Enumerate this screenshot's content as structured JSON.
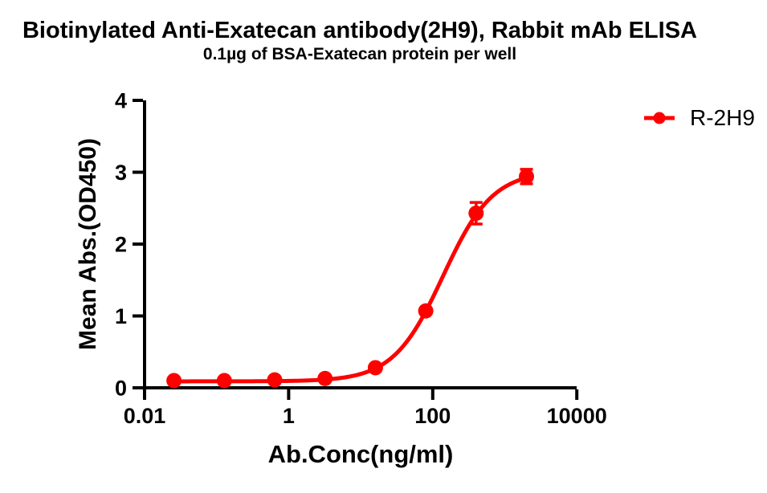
{
  "chart_data": {
    "type": "line",
    "title": "Biotinylated Anti-Exatecan antibody(2H9), Rabbit mAb ELISA",
    "subtitle": "0.1µg of BSA-Exatecan protein per well",
    "xlabel": "Ab.Conc(ng/ml)",
    "ylabel": "Mean Abs.(OD450)",
    "x_scale": "log10",
    "xlim": [
      0.01,
      10000
    ],
    "ylim": [
      0,
      4
    ],
    "grid": false,
    "legend_position": "top-right",
    "x_ticks": [
      {
        "value": 0.01,
        "label": "0.01"
      },
      {
        "value": 1,
        "label": "1"
      },
      {
        "value": 100,
        "label": "100"
      },
      {
        "value": 10000,
        "label": "10000"
      }
    ],
    "y_ticks": [
      {
        "value": 0,
        "label": "0"
      },
      {
        "value": 1,
        "label": "1"
      },
      {
        "value": 2,
        "label": "2"
      },
      {
        "value": 3,
        "label": "3"
      },
      {
        "value": 4,
        "label": "4"
      }
    ],
    "series": [
      {
        "name": "R-2H9",
        "color": "#ff0000",
        "marker": "circle",
        "points": [
          {
            "x": 0.0256,
            "y": 0.1,
            "err": 0
          },
          {
            "x": 0.128,
            "y": 0.1,
            "err": 0
          },
          {
            "x": 0.64,
            "y": 0.11,
            "err": 0
          },
          {
            "x": 3.2,
            "y": 0.13,
            "err": 0
          },
          {
            "x": 16,
            "y": 0.28,
            "err": 0
          },
          {
            "x": 80,
            "y": 1.07,
            "err": 0
          },
          {
            "x": 400,
            "y": 2.43,
            "err": 0.15
          },
          {
            "x": 2000,
            "y": 2.94,
            "err": 0.1
          }
        ],
        "fit": {
          "model": "4PL",
          "bottom": 0.09,
          "top": 3.02,
          "ec50": 139,
          "hill": 1.26
        }
      }
    ],
    "colors": {
      "axis": "#000000",
      "text": "#000000",
      "background": "#ffffff",
      "series_red": "#ff0000"
    }
  }
}
